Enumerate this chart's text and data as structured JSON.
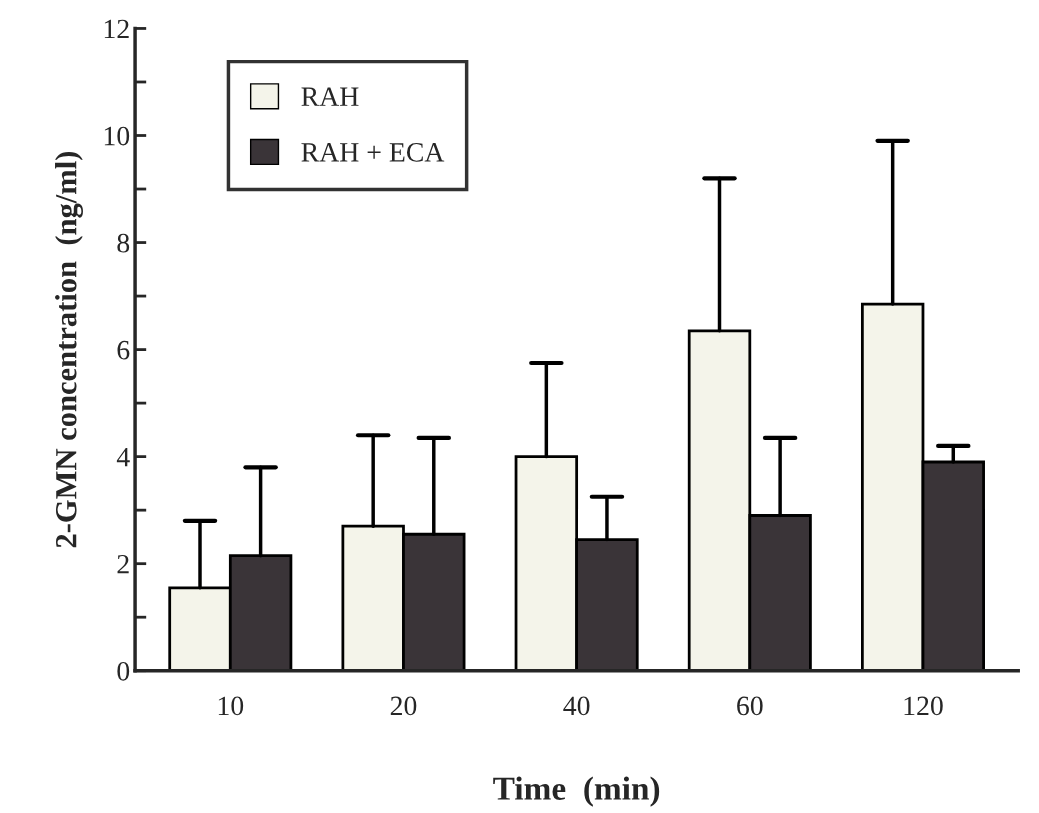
{
  "chart_data": {
    "type": "bar",
    "xlabel": "Time  (min)",
    "ylabel": "2-GMN concentration  (ng/ml)",
    "categories": [
      "10",
      "20",
      "40",
      "60",
      "120"
    ],
    "series": [
      {
        "name": "RAH",
        "color": "#f4f4ea",
        "values": [
          1.55,
          2.7,
          4.0,
          6.35,
          6.85
        ],
        "errors": [
          [
            1.55,
            2.8
          ],
          [
            2.7,
            4.4
          ],
          [
            4.0,
            5.75
          ],
          [
            6.35,
            9.2
          ],
          [
            6.85,
            9.9
          ]
        ]
      },
      {
        "name": "RAH + ECA",
        "color": "#3a3438",
        "values": [
          2.15,
          2.55,
          2.45,
          2.9,
          3.9
        ],
        "errors": [
          [
            2.15,
            3.8
          ],
          [
            2.55,
            4.35
          ],
          [
            2.45,
            3.25
          ],
          [
            2.9,
            4.35
          ],
          [
            3.9,
            4.2
          ]
        ]
      }
    ],
    "ylim": [
      0,
      12
    ],
    "yticks": [
      0,
      {
        "value": 1,
        "label": null
      },
      2,
      {
        "value": 3,
        "label": null
      },
      4,
      {
        "value": 5,
        "label": null
      },
      6,
      {
        "value": 7,
        "label": null
      },
      8,
      {
        "value": 9,
        "label": null
      },
      10,
      {
        "value": 11,
        "label": null
      },
      12
    ],
    "legend": "top left",
    "grid": false
  }
}
